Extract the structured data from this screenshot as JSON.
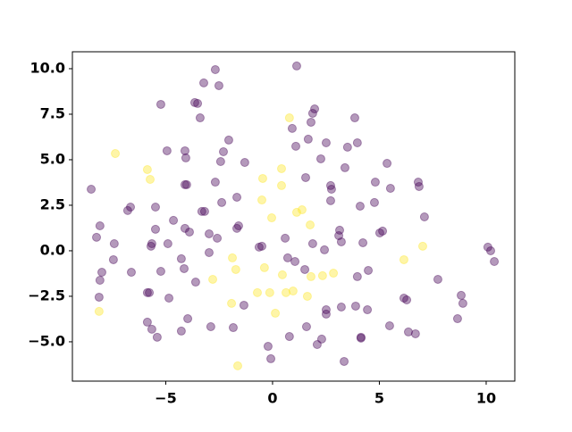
{
  "chart_data": {
    "type": "scatter",
    "xlim": [
      -9.37,
      11.34
    ],
    "ylim": [
      -7.16,
      10.93
    ],
    "xticks": [
      {
        "value": -5,
        "label": "−5"
      },
      0,
      5,
      10
    ],
    "yticks": [
      {
        "value": -5,
        "label": "−5.0"
      },
      {
        "value": -2.5,
        "label": "−2.5"
      },
      {
        "value": 0,
        "label": "0.0"
      },
      2.5,
      {
        "value": 5,
        "label": "5.0"
      },
      7.5,
      {
        "value": 10,
        "label": "10.0"
      }
    ],
    "alpha": 0.4,
    "series": [
      {
        "color": "#440154",
        "x": [
          1.13,
          -2.68,
          -3.22,
          -2.51,
          -5.23,
          -3.64,
          -3.51,
          -3.39,
          1.97,
          1.88,
          1.8,
          3.85,
          0.92,
          -2.05,
          1.67,
          3.97,
          1.09,
          2.51,
          3.51,
          -4.94,
          -4.1,
          -2.3,
          -4.06,
          2.26,
          -2.43,
          -1.3,
          5.36,
          3.39,
          1.55,
          4.81,
          -2.68,
          -4.1,
          -4.02,
          2.72,
          2.76,
          5.52,
          6.82,
          6.86,
          -8.49,
          -1.67,
          2.72,
          4.77,
          4.1,
          -2.38,
          -6.65,
          -5.48,
          -6.78,
          -3.31,
          -3.18,
          7.11,
          -4.64,
          -8.08,
          -1.59,
          -1.67,
          -4.1,
          -5.48,
          3.14,
          5.15,
          5.02,
          -3.89,
          -2.97,
          3.1,
          0.59,
          -2.59,
          -8.24,
          -7.41,
          -5.65,
          1.88,
          -4.9,
          3.22,
          4.23,
          -0.63,
          -0.5,
          -5.69,
          2.43,
          10.08,
          10.21,
          -2.97,
          10.38,
          0.71,
          1.05,
          -4.27,
          -7.45,
          -4.14,
          1.51,
          -5.23,
          -6.61,
          -7.99,
          4.48,
          3.97,
          -8.08,
          7.74,
          -3.6,
          -5.86,
          -5.77,
          -4.85,
          6.15,
          6.28,
          -8.12,
          8.83,
          8.91,
          -1.34,
          3.22,
          2.51,
          3.89,
          4.44,
          2.51,
          -3.97,
          -5.86,
          8.66,
          1.59,
          -2.89,
          -1.84,
          5.48,
          -5.65,
          -4.27,
          6.36,
          6.69,
          -5.4,
          0.79,
          4.14,
          4.14,
          2.3,
          2.09,
          -0.21,
          -0.08,
          3.35
        ],
        "values": [
          10.15,
          9.95,
          9.22,
          9.07,
          8.04,
          8.14,
          8.09,
          7.3,
          7.79,
          7.55,
          7.06,
          7.3,
          6.72,
          6.08,
          6.13,
          5.93,
          5.74,
          5.93,
          5.69,
          5.49,
          5.49,
          5.44,
          5.1,
          5.05,
          4.9,
          4.85,
          4.8,
          4.56,
          4.02,
          3.77,
          3.77,
          3.63,
          3.63,
          3.58,
          3.38,
          3.43,
          3.77,
          3.53,
          3.38,
          2.94,
          2.75,
          2.65,
          2.45,
          2.65,
          2.4,
          2.4,
          2.21,
          2.16,
          2.16,
          1.86,
          1.67,
          1.37,
          1.37,
          1.23,
          1.23,
          1.18,
          1.13,
          1.08,
          0.98,
          1.03,
          0.93,
          0.83,
          0.69,
          0.69,
          0.74,
          0.39,
          0.39,
          0.39,
          0.39,
          0.49,
          0.44,
          0.2,
          0.25,
          0.25,
          0.05,
          0.2,
          0.0,
          -0.1,
          -0.59,
          -0.39,
          -0.59,
          -0.44,
          -0.49,
          -0.98,
          -1.03,
          -1.13,
          -1.18,
          -1.18,
          -1.08,
          -1.42,
          -1.62,
          -1.57,
          -1.72,
          -2.3,
          -2.3,
          -2.6,
          -2.6,
          -2.7,
          -2.55,
          -2.45,
          -2.89,
          -2.99,
          -3.09,
          -3.24,
          -3.04,
          -3.24,
          -3.48,
          -3.73,
          -3.92,
          -3.73,
          -4.17,
          -4.17,
          -4.22,
          -4.12,
          -4.31,
          -4.41,
          -4.46,
          -4.56,
          -4.75,
          -4.71,
          -4.8,
          -4.75,
          -4.85,
          -5.15,
          -5.25,
          -5.93,
          -6.08
        ]
      },
      {
        "color": "#fde725",
        "x": [
          0.79,
          -7.36,
          0.42,
          -5.86,
          -5.73,
          -0.46,
          0.42,
          -0.5,
          1.38,
          1.13,
          -0.04,
          1.76,
          7.03,
          -1.88,
          6.15,
          -1.72,
          -0.38,
          0.46,
          1.8,
          2.34,
          2.85,
          -2.8,
          -0.71,
          -0.13,
          0.63,
          0.96,
          1.63,
          -1.92,
          -8.12,
          0.13,
          -1.63
        ],
        "values": [
          7.3,
          5.34,
          4.51,
          4.46,
          3.92,
          3.97,
          3.58,
          2.79,
          2.25,
          2.11,
          1.81,
          1.42,
          0.25,
          -0.39,
          -0.49,
          -1.03,
          -0.93,
          -1.32,
          -1.42,
          -1.37,
          -1.23,
          -1.57,
          -2.3,
          -2.3,
          -2.3,
          -2.21,
          -2.5,
          -2.89,
          -3.33,
          -3.43,
          -6.32
        ]
      }
    ]
  }
}
